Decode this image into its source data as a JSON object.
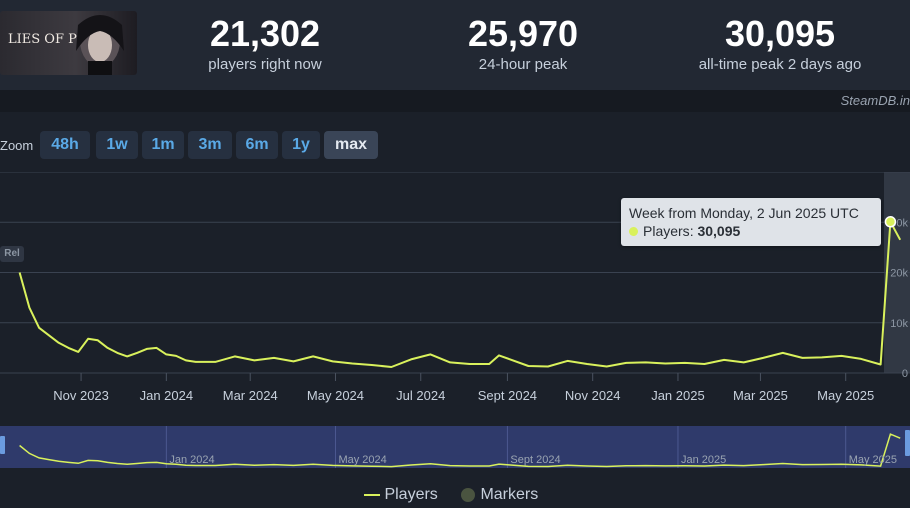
{
  "game": {
    "logo_text": "LIES OF P"
  },
  "stats": [
    {
      "value": "21,302",
      "label": "players right now"
    },
    {
      "value": "25,970",
      "label": "24-hour peak"
    },
    {
      "value": "30,095",
      "label": "all-time peak 2 days ago"
    }
  ],
  "credit": "SteamDB.in",
  "zoom": {
    "label": "Zoom",
    "buttons": [
      "48h",
      "1w",
      "1m",
      "3m",
      "6m",
      "1y",
      "max"
    ],
    "active": "max"
  },
  "tooltip": {
    "title": "Week from Monday, 2 Jun 2025 UTC",
    "series": "Players",
    "value": "30,095"
  },
  "release_marker": "Rel",
  "legend": {
    "players": "Players",
    "markers": "Markers"
  },
  "colors": {
    "line": "#d9f15c",
    "navigator_bg": "#2f3a6b",
    "tooltip_bg": "#dfe3e8",
    "background": "#1b2029"
  },
  "chart_data": {
    "type": "line",
    "title": "",
    "xlabel": "",
    "ylabel": "",
    "x_ticks": [
      "Nov 2023",
      "Jan 2024",
      "Mar 2024",
      "May 2024",
      "Jul 2024",
      "Sept 2024",
      "Nov 2024",
      "Jan 2025",
      "Mar 2025",
      "May 2025"
    ],
    "y_ticks": [
      "0",
      "10k",
      "20k",
      "30k"
    ],
    "ylim": [
      0,
      40000
    ],
    "grid": true,
    "navigator_ticks": [
      "Jan 2024",
      "May 2024",
      "Sept 2024",
      "Jan 2025",
      "May 2025"
    ],
    "series": [
      {
        "name": "Players",
        "x": [
          "2023-09-18",
          "2023-09-25",
          "2023-10-02",
          "2023-10-09",
          "2023-10-16",
          "2023-10-23",
          "2023-10-30",
          "2023-11-06",
          "2023-11-13",
          "2023-11-20",
          "2023-11-27",
          "2023-12-04",
          "2023-12-11",
          "2023-12-18",
          "2023-12-25",
          "2024-01-01",
          "2024-01-08",
          "2024-01-15",
          "2024-01-22",
          "2024-02-05",
          "2024-02-19",
          "2024-03-04",
          "2024-03-18",
          "2024-04-01",
          "2024-04-15",
          "2024-04-29",
          "2024-05-13",
          "2024-05-27",
          "2024-06-10",
          "2024-06-24",
          "2024-07-08",
          "2024-07-22",
          "2024-08-05",
          "2024-08-19",
          "2024-08-26",
          "2024-09-02",
          "2024-09-16",
          "2024-09-30",
          "2024-10-14",
          "2024-10-28",
          "2024-11-11",
          "2024-11-25",
          "2024-12-09",
          "2024-12-23",
          "2025-01-06",
          "2025-01-20",
          "2025-02-03",
          "2025-02-17",
          "2025-03-03",
          "2025-03-17",
          "2025-03-31",
          "2025-04-14",
          "2025-04-28",
          "2025-05-12",
          "2025-05-26",
          "2025-06-02",
          "2025-06-09"
        ],
        "y": [
          20000,
          13000,
          9000,
          7500,
          6000,
          5000,
          4200,
          6800,
          6500,
          5000,
          4000,
          3300,
          4000,
          4800,
          5000,
          3700,
          3400,
          2500,
          2200,
          2200,
          3300,
          2500,
          3000,
          2300,
          3300,
          2300,
          1900,
          1600,
          1200,
          2700,
          3700,
          2100,
          1800,
          1800,
          3500,
          2800,
          1400,
          1300,
          2400,
          1800,
          1300,
          2000,
          2100,
          1900,
          2000,
          1800,
          2600,
          2100,
          3000,
          4000,
          3000,
          3100,
          3400,
          2800,
          1700,
          30095,
          26500
        ]
      }
    ]
  }
}
